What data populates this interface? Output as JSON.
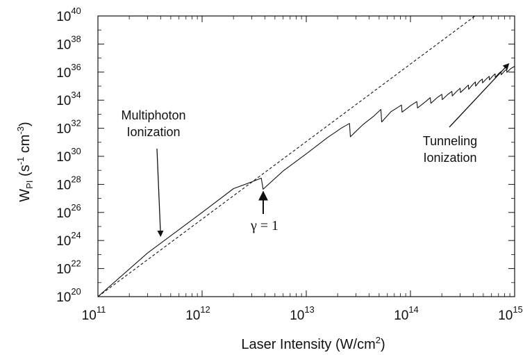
{
  "chart_data": {
    "type": "line",
    "x_scale": "log",
    "y_scale": "log",
    "xlim": [
      100000000000.0,
      1000000000000000.0
    ],
    "ylim": [
      1e+20,
      1e+40
    ],
    "grid": false,
    "xlabel": {
      "main": "Laser Intensity (W/cm",
      "sup": "2",
      "tail": ")"
    },
    "ylabel": {
      "main": "W",
      "sub": "PI",
      "paren": " (s",
      "sup1": "-1",
      "mid": " cm",
      "sup2": "-3",
      "tail": ")"
    },
    "x_ticks": [
      {
        "base": "10",
        "exp": "11",
        "value": 100000000000.0
      },
      {
        "base": "10",
        "exp": "12",
        "value": 1000000000000.0
      },
      {
        "base": "10",
        "exp": "13",
        "value": 10000000000000.0
      },
      {
        "base": "10",
        "exp": "14",
        "value": 100000000000000.0
      },
      {
        "base": "10",
        "exp": "15",
        "value": 1000000000000000.0
      }
    ],
    "y_ticks": [
      {
        "base": "10",
        "exp": "20",
        "value": 1e+20
      },
      {
        "base": "10",
        "exp": "22",
        "value": 1e+22
      },
      {
        "base": "10",
        "exp": "24",
        "value": 1e+24
      },
      {
        "base": "10",
        "exp": "26",
        "value": 1e+26
      },
      {
        "base": "10",
        "exp": "28",
        "value": 1e+28
      },
      {
        "base": "10",
        "exp": "30",
        "value": 1e+30
      },
      {
        "base": "10",
        "exp": "32",
        "value": 1e+32
      },
      {
        "base": "10",
        "exp": "34",
        "value": 1e+34
      },
      {
        "base": "10",
        "exp": "36",
        "value": 1e+36
      },
      {
        "base": "10",
        "exp": "38",
        "value": 1e+38
      },
      {
        "base": "10",
        "exp": "40",
        "value": 1e+40
      }
    ],
    "series": [
      {
        "style": "dashed",
        "points": [
          [
            100000000000.0,
            1e+20
          ],
          [
            417000000000000.0,
            1e+40
          ]
        ]
      },
      {
        "style": "solid",
        "points": [
          [
            100000000000.0,
            1e+20
          ],
          [
            300000000000.0,
            1.3e+23
          ],
          [
            1000000000000.0,
            1e+26
          ],
          [
            2000000000000.0,
            5e+27
          ],
          [
            3000000000000.0,
            1.5e+28
          ],
          [
            3700000000000.0,
            2.8e+28
          ],
          [
            3850000000000.0,
            4.5e+27
          ],
          [
            6000000000000.0,
            9e+28
          ],
          [
            10000000000000.0,
            1.5e+30
          ],
          [
            16000000000000.0,
            2.2e+31
          ],
          [
            22000000000000.0,
            1.1e+32
          ],
          [
            26000000000000.0,
            2.2e+32
          ],
          [
            26500000000000.0,
            2.5e+31
          ],
          [
            35000000000000.0,
            1.8e+32
          ],
          [
            45000000000000.0,
            8e+32
          ],
          [
            52000000000000.0,
            2.2e+33
          ],
          [
            53000000000000.0,
            2.8e+32
          ],
          [
            65000000000000.0,
            1.5e+33
          ],
          [
            82000000000000.0,
            4.5e+33
          ],
          [
            83000000000000.0,
            1.4e+33
          ],
          [
            100000000000000.0,
            4e+33
          ],
          [
            115000000000000.0,
            8e+33
          ],
          [
            117000000000000.0,
            2.8e+33
          ],
          [
            140000000000000.0,
            8e+33
          ],
          [
            155000000000000.0,
            1.5e+34
          ],
          [
            157000000000000.0,
            6e+33
          ],
          [
            180000000000000.0,
            1.5e+34
          ],
          [
            200000000000000.0,
            2.6e+34
          ],
          [
            202000000000000.0,
            1.1e+34
          ],
          [
            230000000000000.0,
            2.7e+34
          ],
          [
            250000000000000.0,
            4.2e+34
          ],
          [
            252000000000000.0,
            2e+34
          ],
          [
            280000000000000.0,
            4.5e+34
          ],
          [
            300000000000000.0,
            7e+34
          ],
          [
            302000000000000.0,
            3.5e+34
          ],
          [
            340000000000000.0,
            8e+34
          ],
          [
            360000000000000.0,
            1.2e+35
          ],
          [
            362000000000000.0,
            6e+34
          ],
          [
            400000000000000.0,
            1.4e+35
          ],
          [
            420000000000000.0,
            2e+35
          ],
          [
            422000000000000.0,
            1e+35
          ],
          [
            460000000000000.0,
            2.2e+35
          ],
          [
            490000000000000.0,
            3.2e+35
          ],
          [
            492000000000000.0,
            1.7e+35
          ],
          [
            540000000000000.0,
            3.5e+35
          ],
          [
            570000000000000.0,
            5e+35
          ],
          [
            572000000000000.0,
            2.8e+35
          ],
          [
            620000000000000.0,
            5.5e+35
          ],
          [
            650000000000000.0,
            7.5e+35
          ],
          [
            652000000000000.0,
            4.3e+35
          ],
          [
            710000000000000.0,
            8.5e+35
          ],
          [
            740000000000000.0,
            1.1e+36
          ],
          [
            742000000000000.0,
            6.5e+35
          ],
          [
            800000000000000.0,
            1.2e+36
          ],
          [
            840000000000000.0,
            1.6e+36
          ],
          [
            842000000000000.0,
            9.5e+35
          ],
          [
            920000000000000.0,
            1.8e+36
          ],
          [
            1000000000000000.0,
            2.6e+36
          ]
        ]
      }
    ],
    "annotations": [
      {
        "id": "mpi",
        "lines": [
          "Multiphoton",
          "Ionization"
        ],
        "arrow_to": [
          400000000000.0,
          2e+24
        ]
      },
      {
        "id": "tunnel",
        "lines": [
          "Tunneling",
          "Ionization"
        ],
        "arrow_to": [
          880000000000000.0,
          4e+36
        ]
      },
      {
        "id": "gamma",
        "text": "γ = 1",
        "arrow_to": [
          3900000000000.0,
          3e+27
        ]
      }
    ]
  }
}
